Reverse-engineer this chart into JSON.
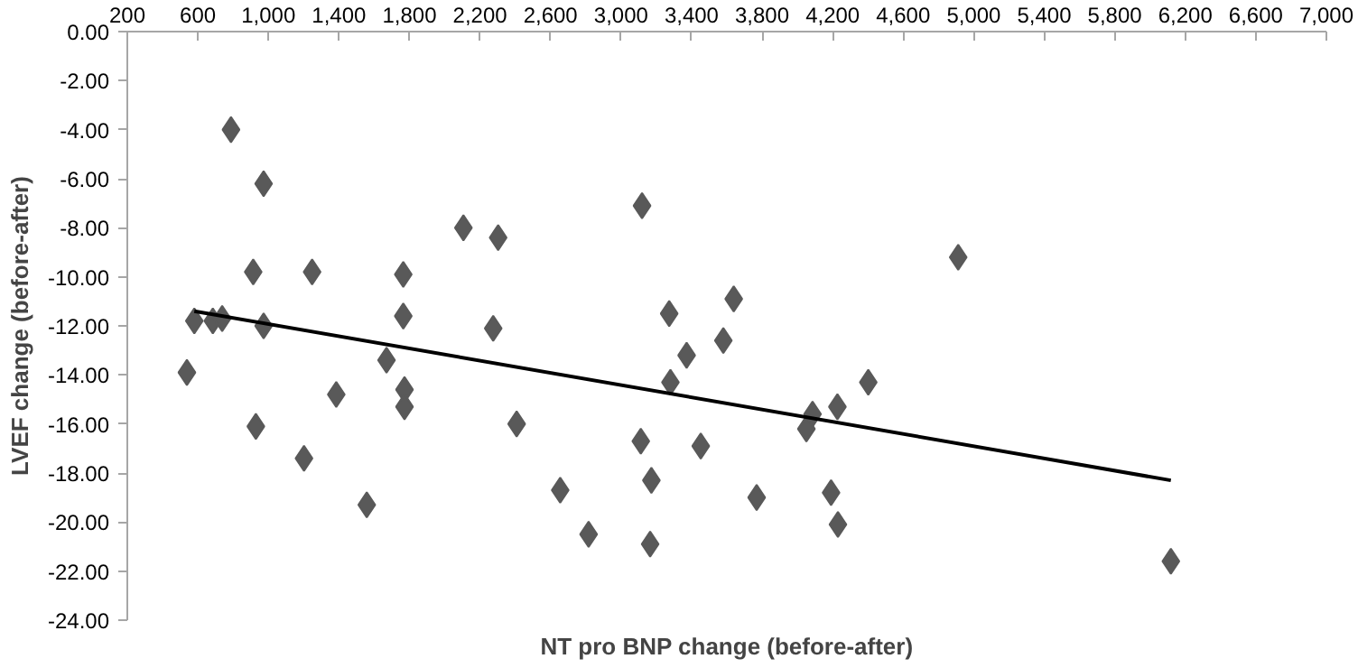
{
  "chart_data": {
    "type": "scatter",
    "xlabel": "NT pro BNP change (before-after)",
    "ylabel": "LVEF change (before-after)",
    "xlim": [
      200,
      7000
    ],
    "ylim": [
      -24,
      0
    ],
    "xticks": [
      200,
      {
        "value": 600,
        "label": "600"
      },
      {
        "value": 1000,
        "label": "1,000"
      },
      {
        "value": 1400,
        "label": "1,400"
      },
      {
        "value": 1800,
        "label": "1,800"
      },
      {
        "value": 2200,
        "label": "2,200"
      },
      {
        "value": 2600,
        "label": "2,600"
      },
      {
        "value": 3000,
        "label": "3,000"
      },
      {
        "value": 3400,
        "label": "3,400"
      },
      {
        "value": 3800,
        "label": "3,800"
      },
      {
        "value": 4200,
        "label": "4,200"
      },
      {
        "value": 4600,
        "label": "4,600"
      },
      {
        "value": 5000,
        "label": "5,000"
      },
      {
        "value": 5400,
        "label": "5,400"
      },
      {
        "value": 5800,
        "label": "5,800"
      },
      {
        "value": 6200,
        "label": "6,200"
      },
      {
        "value": 6600,
        "label": "6,600"
      },
      {
        "value": 7000,
        "label": "7,000"
      }
    ],
    "yticks": [
      {
        "value": 0,
        "label": "0.00"
      },
      {
        "value": -2,
        "label": "-2.00"
      },
      {
        "value": -4,
        "label": "-4.00"
      },
      {
        "value": -6,
        "label": "-6.00"
      },
      {
        "value": -8,
        "label": "-8.00"
      },
      {
        "value": -10,
        "label": "-10.00"
      },
      {
        "value": -12,
        "label": "-12.00"
      },
      {
        "value": -14,
        "label": "-14.00"
      },
      {
        "value": -16,
        "label": "-16.00"
      },
      {
        "value": -18,
        "label": "-18.00"
      },
      {
        "value": -20,
        "label": "-20.00"
      },
      {
        "value": -22,
        "label": "-22.00"
      },
      {
        "value": -24,
        "label": "-24.00"
      }
    ],
    "grid": false,
    "marker": "diamond",
    "series": [
      {
        "color": "#595959",
        "x": [
          538,
          580,
          685,
          738,
          788,
          973,
          914,
          973,
          929,
          1248,
          1202,
          1385,
          1558,
          1670,
          1765,
          1765,
          1772,
          1772,
          2106,
          2303,
          2275,
          2408,
          2655,
          2816,
          3119,
          3112,
          3172,
          3165,
          3273,
          3280,
          3372,
          3452,
          3580,
          3639,
          3769,
          4051,
          4086,
          4191,
          4227,
          4230,
          4402,
          4912,
          6118
        ],
        "values": [
          -13.9,
          -11.8,
          -11.8,
          -11.7,
          -4.0,
          -6.2,
          -9.8,
          -12.0,
          -16.1,
          -9.8,
          -17.4,
          -14.8,
          -19.3,
          -13.4,
          -9.9,
          -11.6,
          -14.6,
          -15.3,
          -8.0,
          -8.4,
          -12.1,
          -16.0,
          -18.7,
          -20.5,
          -7.1,
          -16.7,
          -18.3,
          -20.9,
          -11.5,
          -14.3,
          -13.2,
          -16.9,
          -12.6,
          -10.9,
          -19.0,
          -16.2,
          -15.6,
          -18.8,
          -15.3,
          -20.1,
          -14.3,
          -9.2,
          -21.6
        ]
      },
      {
        "type": "line",
        "color": "#000000",
        "x": [
          580,
          6118
        ],
        "values": [
          -11.4,
          -18.3
        ],
        "marker": "none",
        "line_style": "solid"
      }
    ]
  }
}
